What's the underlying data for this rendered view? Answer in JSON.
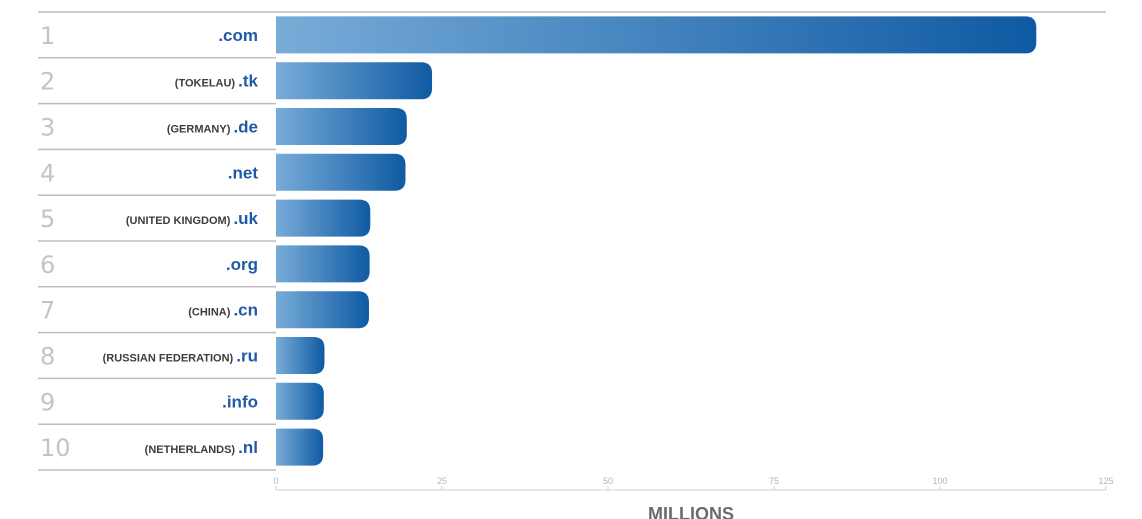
{
  "chart_data": {
    "type": "bar",
    "orientation": "horizontal",
    "categories": [
      {
        "rank": "1",
        "country": "",
        "tld": ".com"
      },
      {
        "rank": "2",
        "country": "(TOKELAU)",
        "tld": ".tk"
      },
      {
        "rank": "3",
        "country": "(GERMANY)",
        "tld": ".de"
      },
      {
        "rank": "4",
        "country": "",
        "tld": ".net"
      },
      {
        "rank": "5",
        "country": "(UNITED KINGDOM)",
        "tld": ".uk"
      },
      {
        "rank": "6",
        "country": "",
        "tld": ".org"
      },
      {
        "rank": "7",
        "country": "(CHINA)",
        "tld": ".cn"
      },
      {
        "rank": "8",
        "country": "(RUSSIAN FEDERATION)",
        "tld": ".ru"
      },
      {
        "rank": "9",
        "country": "",
        "tld": ".info"
      },
      {
        "rank": "10",
        "country": "(NETHERLANDS)",
        "tld": ".nl"
      }
    ],
    "values": [
      114.5,
      23.5,
      19.7,
      19.5,
      14.2,
      14.1,
      14.0,
      7.3,
      7.2,
      7.1
    ],
    "xlabel": "MILLIONS",
    "xlim": [
      0,
      125
    ],
    "xticks": [
      0,
      25,
      50,
      75,
      100,
      125
    ],
    "xtick_labels": [
      "0",
      "25",
      "50",
      "75",
      "100",
      "125"
    ],
    "grid": false,
    "legend": "none",
    "colors": {
      "bar_start": "#78acd8",
      "bar_end": "#0f5aa3",
      "tld_text": "#1f5aa6",
      "rank_text": "#c4c4c4",
      "row_line": "#bdbdbd"
    }
  }
}
